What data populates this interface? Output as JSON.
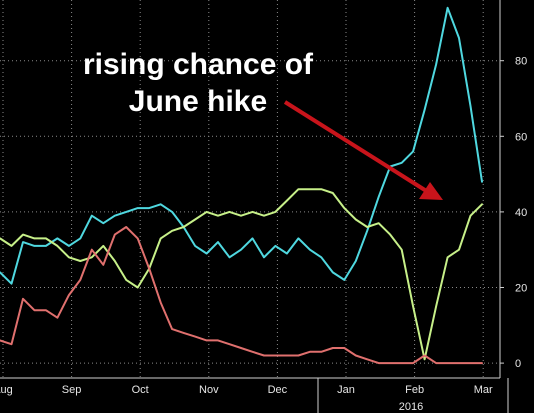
{
  "chart_data": {
    "type": "line",
    "title": "",
    "xlabel": "",
    "ylabel": "",
    "ylim": [
      -5,
      95
    ],
    "yticks": [
      0,
      20,
      40,
      60,
      80
    ],
    "x_tick_labels": [
      "Aug",
      "Sep",
      "Oct",
      "Nov",
      "Dec",
      "Jan",
      "Feb",
      "Mar"
    ],
    "x_year_label": "2016",
    "grid": true,
    "legend": "none",
    "annotation": {
      "lines": [
        "rising chance of",
        "June hike"
      ],
      "arrow_target": "green series end (Mar)"
    },
    "colors": {
      "cyan": "#4fd8e0",
      "green": "#c7f089",
      "red": "#e0706e",
      "arrow": "#c8141b",
      "grid": "#8a8a8a",
      "background": "#000000"
    },
    "series": [
      {
        "color_key": "cyan",
        "x": [
          0,
          1,
          2,
          3,
          4,
          5,
          6,
          7,
          8,
          9,
          10,
          11,
          12,
          13,
          14,
          15,
          16,
          17,
          18,
          19,
          20,
          21,
          22,
          23,
          24,
          25,
          26,
          27,
          28,
          29,
          30,
          31,
          32,
          33,
          34,
          35,
          36,
          37,
          38,
          39,
          40,
          41,
          42
        ],
        "y": [
          24,
          21,
          32,
          31,
          31,
          33,
          31,
          33,
          39,
          37,
          39,
          40,
          41,
          41,
          42,
          40,
          36,
          31,
          29,
          32,
          28,
          30,
          33,
          28,
          31,
          29,
          33,
          30,
          28,
          24,
          22,
          27,
          35,
          44,
          52,
          53,
          56,
          67,
          79,
          94,
          86,
          68,
          48
        ]
      },
      {
        "color_key": "green",
        "x": [
          0,
          1,
          2,
          3,
          4,
          5,
          6,
          7,
          8,
          9,
          10,
          11,
          12,
          13,
          14,
          15,
          16,
          17,
          18,
          19,
          20,
          21,
          22,
          23,
          24,
          25,
          26,
          27,
          28,
          29,
          30,
          31,
          32,
          33,
          34,
          35,
          36,
          37,
          38,
          39,
          40,
          41,
          42
        ],
        "y": [
          33,
          31,
          34,
          33,
          33,
          31,
          28,
          27,
          28,
          31,
          27,
          22,
          20,
          25,
          33,
          35,
          36,
          38,
          40,
          39,
          40,
          39,
          40,
          39,
          40,
          43,
          46,
          46,
          46,
          45,
          41,
          38,
          36,
          37,
          34,
          30,
          15,
          1,
          15,
          28,
          30,
          39,
          42
        ]
      },
      {
        "color_key": "red",
        "x": [
          0,
          1,
          2,
          3,
          4,
          5,
          6,
          7,
          8,
          9,
          10,
          11,
          12,
          13,
          14,
          15,
          16,
          17,
          18,
          19,
          20,
          21,
          22,
          23,
          24,
          25,
          26,
          27,
          28,
          29,
          30,
          31,
          32,
          33,
          34,
          35,
          36,
          37,
          38,
          39,
          40,
          41,
          42
        ],
        "y": [
          6,
          5,
          17,
          14,
          14,
          12,
          18,
          22,
          30,
          26,
          34,
          36,
          33,
          25,
          16,
          9,
          8,
          7,
          6,
          6,
          5,
          4,
          3,
          2,
          2,
          2,
          2,
          3,
          3,
          4,
          4,
          2,
          1,
          0,
          0,
          0,
          0,
          2,
          0,
          0,
          0,
          0,
          0
        ]
      }
    ]
  }
}
